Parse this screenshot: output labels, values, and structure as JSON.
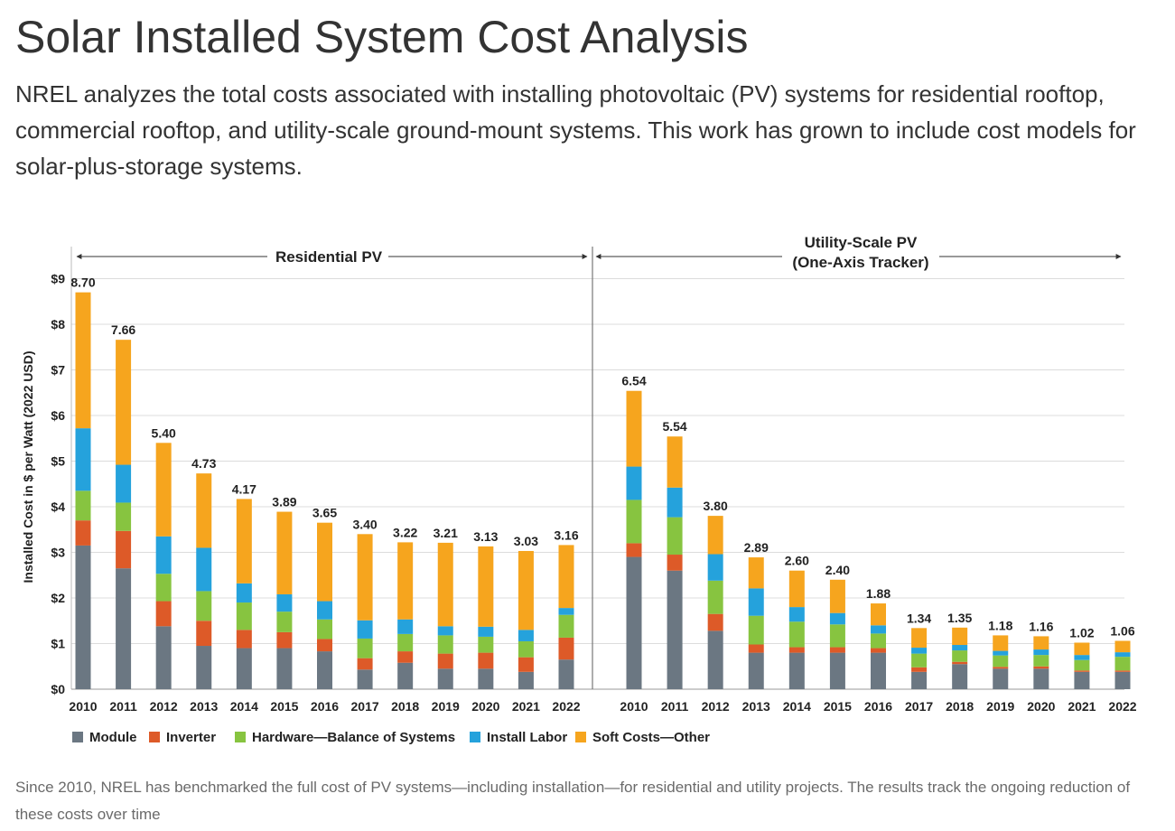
{
  "page": {
    "title": "Solar Installed System Cost Analysis",
    "intro": "NREL analyzes the total costs associated with installing photovoltaic (PV) systems for residential rooftop, commercial rooftop, and utility-scale ground-mount systems. This work has grown to include cost models for solar-plus-storage systems.",
    "caption": "Since 2010, NREL has benchmarked the full cost of PV systems—including installation—for residential and utility projects. The results track the ongoing reduction of these costs over time"
  },
  "chart_data": {
    "type": "bar",
    "stacked": true,
    "ylabel": "Installed Cost in $ per Watt (2022 USD)",
    "ylim": [
      0,
      9
    ],
    "yticks": [
      0,
      1,
      2,
      3,
      4,
      5,
      6,
      7,
      8,
      9
    ],
    "ytick_labels": [
      "$0",
      "$1",
      "$2",
      "$3",
      "$4",
      "$5",
      "$6",
      "$7",
      "$8",
      "$9"
    ],
    "grid": true,
    "legend_position": "bottom",
    "legend": [
      {
        "name": "Module",
        "color": "#6b7782"
      },
      {
        "name": "Inverter",
        "color": "#dd5a28"
      },
      {
        "name": "Hardware—Balance of Systems",
        "color": "#87c440"
      },
      {
        "name": "Install Labor",
        "color": "#25a2dc"
      },
      {
        "name": "Soft Costs—Other",
        "color": "#f6a51e"
      }
    ],
    "panels": [
      {
        "title": "Residential PV",
        "categories": [
          "2010",
          "2011",
          "2012",
          "2013",
          "2014",
          "2015",
          "2016",
          "2017",
          "2018",
          "2019",
          "2020",
          "2021",
          "2022"
        ],
        "totals": [
          "8.70",
          "7.66",
          "5.40",
          "4.73",
          "4.17",
          "3.89",
          "3.65",
          "3.40",
          "3.22",
          "3.21",
          "3.13",
          "3.03",
          "3.16"
        ],
        "series": [
          {
            "name": "Module",
            "values": [
              3.15,
              2.65,
              1.38,
              0.95,
              0.9,
              0.9,
              0.83,
              0.43,
              0.58,
              0.45,
              0.45,
              0.38,
              0.65
            ]
          },
          {
            "name": "Inverter",
            "values": [
              0.55,
              0.82,
              0.55,
              0.55,
              0.4,
              0.35,
              0.27,
              0.25,
              0.25,
              0.33,
              0.35,
              0.32,
              0.48
            ]
          },
          {
            "name": "Hardware—Balance of Systems",
            "values": [
              0.65,
              0.62,
              0.6,
              0.65,
              0.6,
              0.45,
              0.43,
              0.43,
              0.38,
              0.4,
              0.35,
              0.35,
              0.5
            ]
          },
          {
            "name": "Install Labor",
            "values": [
              1.37,
              0.83,
              0.82,
              0.95,
              0.42,
              0.38,
              0.4,
              0.4,
              0.32,
              0.2,
              0.22,
              0.25,
              0.15
            ]
          },
          {
            "name": "Soft Costs—Other",
            "values": [
              2.98,
              2.74,
              2.05,
              1.63,
              1.85,
              1.81,
              1.72,
              1.89,
              1.69,
              1.83,
              1.76,
              1.73,
              1.38
            ]
          }
        ]
      },
      {
        "title": "Utility-Scale PV",
        "subtitle": "(One-Axis Tracker)",
        "categories": [
          "2010",
          "2011",
          "2012",
          "2013",
          "2014",
          "2015",
          "2016",
          "2017",
          "2018",
          "2019",
          "2020",
          "2021",
          "2022"
        ],
        "totals": [
          "6.54",
          "5.54",
          "3.80",
          "2.89",
          "2.60",
          "2.40",
          "1.88",
          "1.34",
          "1.35",
          "1.18",
          "1.16",
          "1.02",
          "1.06"
        ],
        "series": [
          {
            "name": "Module",
            "values": [
              2.9,
              2.6,
              1.28,
              0.8,
              0.8,
              0.8,
              0.8,
              0.38,
              0.55,
              0.45,
              0.45,
              0.38,
              0.38
            ]
          },
          {
            "name": "Inverter",
            "values": [
              0.3,
              0.35,
              0.37,
              0.18,
              0.12,
              0.12,
              0.1,
              0.1,
              0.05,
              0.04,
              0.05,
              0.03,
              0.03
            ]
          },
          {
            "name": "Hardware—Balance of Systems",
            "values": [
              0.95,
              0.82,
              0.73,
              0.63,
              0.56,
              0.5,
              0.32,
              0.3,
              0.25,
              0.25,
              0.25,
              0.23,
              0.3
            ]
          },
          {
            "name": "Install Labor",
            "values": [
              0.73,
              0.65,
              0.58,
              0.6,
              0.32,
              0.25,
              0.18,
              0.13,
              0.12,
              0.1,
              0.12,
              0.11,
              0.1
            ]
          },
          {
            "name": "Soft Costs—Other",
            "values": [
              1.66,
              1.12,
              0.84,
              0.68,
              0.8,
              0.73,
              0.48,
              0.43,
              0.38,
              0.34,
              0.29,
              0.27,
              0.25
            ]
          }
        ]
      }
    ]
  }
}
